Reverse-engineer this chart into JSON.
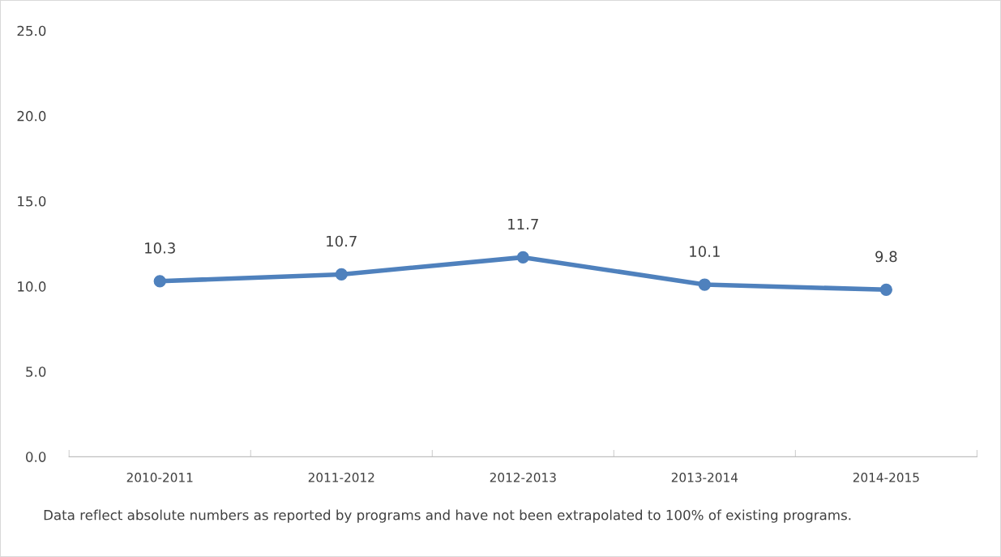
{
  "chart_data": {
    "type": "line",
    "categories": [
      "2010-2011",
      "2011-2012",
      "2012-2013",
      "2013-2014",
      "2014-2015"
    ],
    "series": [
      {
        "color": "#4f81bd",
        "values": [
          10.3,
          10.7,
          11.7,
          10.1,
          9.8
        ]
      }
    ],
    "ylim": [
      0,
      25
    ],
    "yticks": [
      {
        "value": 0,
        "label": "0.0"
      },
      {
        "value": 5,
        "label": "5.0"
      },
      {
        "value": 10,
        "label": "10.0"
      },
      {
        "value": 15,
        "label": "15.0"
      },
      {
        "value": 20,
        "label": "20.0"
      },
      {
        "value": 25,
        "label": "25.0"
      }
    ],
    "data_labels": true,
    "marker": "circle",
    "line_style": "solid",
    "grid": false,
    "legend": false,
    "annotations": [
      "Data reflect absolute numbers as reported by programs and have not been extrapolated to 100% of existing programs."
    ]
  }
}
